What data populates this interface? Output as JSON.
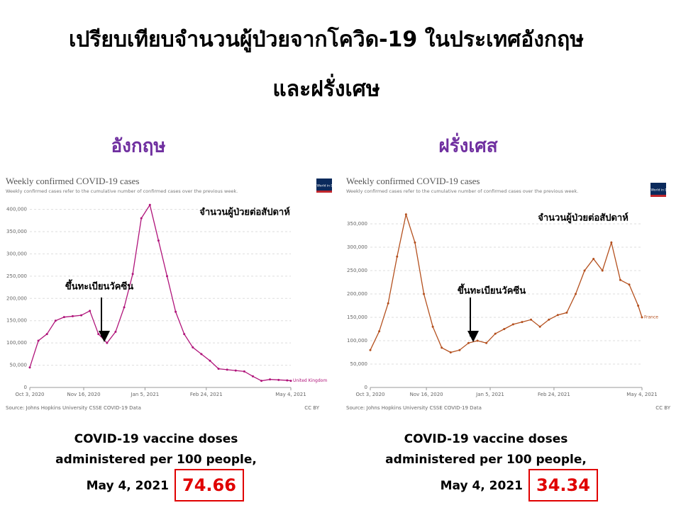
{
  "title_lines": [
    "เปรียบเทียบจำนวนผู้ป่วยจากโควิด-19 ในประเทศอังกฤษ",
    "และฝรั่งเศษ"
  ],
  "panels": [
    {
      "heading": "อังกฤษ",
      "vaccine_lines": [
        "COVID-19 vaccine doses",
        "administered per 100 people,"
      ],
      "date": "May 4, 2021",
      "value": 74.66
    },
    {
      "heading": "ฝรั่งเศส",
      "vaccine_lines": [
        "COVID-19 vaccine doses",
        "administered per 100 people,"
      ],
      "date": "May 4, 2021",
      "value": 34.34
    }
  ],
  "chart_data": [
    {
      "type": "line",
      "title": "Weekly confirmed COVID-19 cases",
      "subtitle": "Weekly confirmed cases refer to the cumulative number of confirmed cases over the previous week.",
      "logo": "Our World in Data",
      "source": "Source: Johns Hopkins University CSSE COVID-19 Data",
      "license": "CC BY",
      "annotations": [
        "จำนวนผู้ป่วยต่อสัปดาห์",
        "ขึ้นทะเบียนวัคซีน"
      ],
      "grid": true,
      "x": [
        "2020-10-03",
        "2020-10-10",
        "2020-10-17",
        "2020-10-24",
        "2020-10-31",
        "2020-11-07",
        "2020-11-14",
        "2020-11-21",
        "2020-11-28",
        "2020-12-05",
        "2020-12-12",
        "2020-12-19",
        "2020-12-26",
        "2021-01-02",
        "2021-01-09",
        "2021-01-16",
        "2021-01-23",
        "2021-01-30",
        "2021-02-06",
        "2021-02-13",
        "2021-02-20",
        "2021-02-27",
        "2021-03-06",
        "2021-03-13",
        "2021-03-20",
        "2021-03-27",
        "2021-04-03",
        "2021-04-10",
        "2021-04-17",
        "2021-04-24",
        "2021-05-01",
        "2021-05-04"
      ],
      "series": [
        {
          "name": "United Kingdom",
          "color": "#b0147a",
          "values": [
            45000,
            105000,
            120000,
            150000,
            158000,
            160000,
            162000,
            172000,
            120000,
            100000,
            125000,
            180000,
            255000,
            380000,
            410000,
            330000,
            250000,
            170000,
            120000,
            90000,
            75000,
            60000,
            42000,
            40000,
            38000,
            36000,
            25000,
            15000,
            18000,
            17000,
            16000,
            15000
          ]
        }
      ],
      "xlim": [
        "2020-10-03",
        "2021-05-04"
      ],
      "xticks": [
        {
          "value": "2020-10-03",
          "label": "Oct 3, 2020"
        },
        {
          "value": "2020-11-16",
          "label": "Nov 16, 2020"
        },
        {
          "value": "2021-01-05",
          "label": "Jan 5, 2021"
        },
        {
          "value": "2021-02-24",
          "label": "Feb 24, 2021"
        },
        {
          "value": "2021-05-04",
          "label": "May 4, 2021"
        }
      ],
      "ylim": [
        0,
        420000
      ],
      "yticks": [
        0,
        {
          "value": 50000,
          "label": "50,000"
        },
        {
          "value": 100000,
          "label": "100,000"
        },
        {
          "value": 150000,
          "label": "150,000"
        },
        {
          "value": 200000,
          "label": "200,000"
        },
        {
          "value": 250000,
          "label": "250,000"
        },
        {
          "value": 300000,
          "label": "300,000"
        },
        {
          "value": 350000,
          "label": "350,000"
        },
        {
          "value": 400000,
          "label": "400,000"
        }
      ]
    },
    {
      "type": "line",
      "title": "Weekly confirmed COVID-19 cases",
      "subtitle": "Weekly confirmed cases refer to the cumulative number of confirmed cases over the previous week.",
      "logo": "Our World in Data",
      "source": "Source: Johns Hopkins University CSSE COVID-19 Data",
      "license": "CC BY",
      "annotations": [
        "จำนวนผู้ป่วยต่อสัปดาห์",
        "ขึ้นทะเบียนวัคซีน"
      ],
      "grid": true,
      "x": [
        "2020-10-03",
        "2020-10-10",
        "2020-10-17",
        "2020-10-24",
        "2020-10-31",
        "2020-11-07",
        "2020-11-14",
        "2020-11-21",
        "2020-11-28",
        "2020-12-05",
        "2020-12-12",
        "2020-12-19",
        "2020-12-26",
        "2021-01-02",
        "2021-01-09",
        "2021-01-16",
        "2021-01-23",
        "2021-01-30",
        "2021-02-06",
        "2021-02-13",
        "2021-02-20",
        "2021-02-27",
        "2021-03-06",
        "2021-03-13",
        "2021-03-20",
        "2021-03-27",
        "2021-04-03",
        "2021-04-10",
        "2021-04-17",
        "2021-04-24",
        "2021-05-01",
        "2021-05-04"
      ],
      "series": [
        {
          "name": "France",
          "color": "#b4501e",
          "values": [
            80000,
            120000,
            180000,
            280000,
            370000,
            310000,
            200000,
            130000,
            85000,
            75000,
            80000,
            95000,
            100000,
            95000,
            115000,
            125000,
            135000,
            140000,
            145000,
            130000,
            145000,
            155000,
            160000,
            200000,
            250000,
            275000,
            250000,
            310000,
            230000,
            220000,
            175000,
            150000
          ]
        }
      ],
      "xlim": [
        "2020-10-03",
        "2021-05-04"
      ],
      "xticks": [
        {
          "value": "2020-10-03",
          "label": "Oct 3, 2020"
        },
        {
          "value": "2020-11-16",
          "label": "Nov 16, 2020"
        },
        {
          "value": "2021-01-05",
          "label": "Jan 5, 2021"
        },
        {
          "value": "2021-02-24",
          "label": "Feb 24, 2021"
        },
        {
          "value": "2021-05-04",
          "label": "May 4, 2021"
        }
      ],
      "ylim": [
        0,
        400000
      ],
      "yticks": [
        0,
        {
          "value": 50000,
          "label": "50,000"
        },
        {
          "value": 100000,
          "label": "100,000"
        },
        {
          "value": 150000,
          "label": "150,000"
        },
        {
          "value": 200000,
          "label": "200,000"
        },
        {
          "value": 250000,
          "label": "250,000"
        },
        {
          "value": 300000,
          "label": "300,000"
        },
        {
          "value": 350000,
          "label": "350,000"
        }
      ]
    }
  ]
}
